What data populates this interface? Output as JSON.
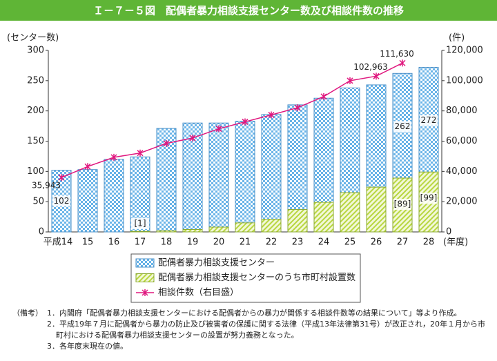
{
  "chart_data": {
    "type": "bar-line",
    "title": "Ｉ－７－５図　配偶者暴力相談支援センター数及び相談件数の推移",
    "y_label": "(センター数)",
    "y2_label": "(件)",
    "x_label": "(年度)",
    "categories": [
      "平成14",
      "15",
      "16",
      "17",
      "18",
      "19",
      "20",
      "21",
      "22",
      "23",
      "24",
      "25",
      "26",
      "27",
      "28"
    ],
    "series": [
      {
        "name": "配偶者暴力相談支援センター",
        "color": "#6ab4e8",
        "kind": "bar",
        "values": [
          102,
          103,
          120,
          124,
          171,
          180,
          180,
          183,
          194,
          210,
          221,
          238,
          243,
          262,
          272
        ],
        "value_labels": [
          "102",
          null,
          null,
          null,
          null,
          null,
          null,
          null,
          null,
          null,
          null,
          null,
          null,
          "262",
          "272"
        ]
      },
      {
        "name": "配偶者暴力相談支援センターのうち市町村設置数",
        "color": "#b8d640",
        "kind": "bar",
        "values": [
          0,
          0,
          0,
          1,
          2,
          4,
          8,
          15,
          21,
          37,
          49,
          65,
          74,
          89,
          99
        ],
        "value_labels": [
          null,
          null,
          null,
          "[1]",
          null,
          null,
          null,
          null,
          null,
          null,
          null,
          null,
          null,
          "[89]",
          "[99]"
        ]
      },
      {
        "name": "相談件数（右目盛）",
        "color": "#e0187f",
        "kind": "line",
        "axis": "y2",
        "values": [
          35943,
          43225,
          49329,
          52145,
          58528,
          62078,
          68196,
          72792,
          77334,
          82099,
          89490,
          99961,
          102963,
          111630,
          null
        ],
        "value_labels": [
          "35,943",
          null,
          null,
          null,
          null,
          null,
          null,
          null,
          null,
          null,
          null,
          null,
          "102,963",
          "111,630",
          null
        ]
      }
    ],
    "ylim": [
      0,
      300
    ],
    "yticks": [
      0,
      50,
      100,
      150,
      200,
      250,
      300
    ],
    "y2lim": [
      0,
      120000
    ],
    "y2ticks": [
      0,
      {
        "value": 20000,
        "label": "20,000"
      },
      {
        "value": 40000,
        "label": "40,000"
      },
      {
        "value": 60000,
        "label": "60,000"
      },
      {
        "value": 80000,
        "label": "80,000"
      },
      {
        "value": 100000,
        "label": "100,000"
      },
      {
        "value": 120000,
        "label": "120,000"
      }
    ],
    "notes_label": "（備考）",
    "notes": [
      "1．内閣府「配偶者暴力相談支援センターにおける配偶者からの暴力が関係する相談件数等の結果について」等より作成。",
      "2．平成19年７月に配偶者から暴力の防止及び被害者の保護に関する法律（平成13年法律第31号）が改正され，20年１月から市町村における配偶者暴力相談支援センターの設置が努力義務となった。",
      "3．各年度末現在の値。"
    ]
  }
}
